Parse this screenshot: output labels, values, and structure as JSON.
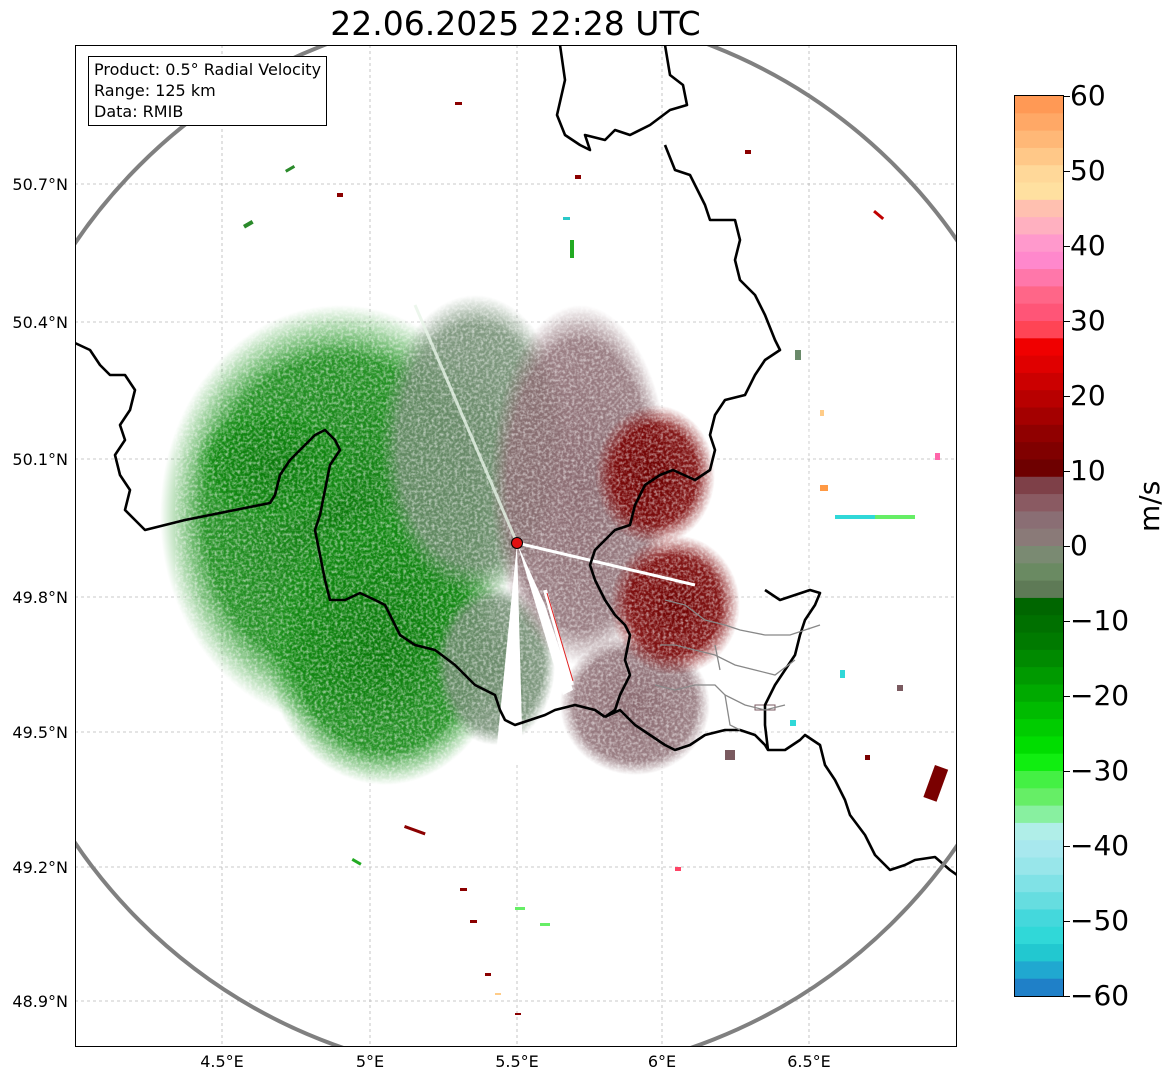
{
  "title": "22.06.2025 22:28 UTC",
  "info_box": {
    "product": "Product: 0.5° Radial Velocity",
    "range": "Range: 125 km",
    "data": "Data: RMIB"
  },
  "map": {
    "lat_labels": [
      "50.7°N",
      "50.4°N",
      "50.1°N",
      "49.8°N",
      "49.5°N",
      "49.2°N",
      "48.9°N"
    ],
    "lon_labels": [
      "4.5°E",
      "5°E",
      "5.5°E",
      "6°E",
      "6.5°E"
    ],
    "range_ring_color": "#808080",
    "border_color": "#000000",
    "radar_site_color": "#e01010"
  },
  "colorbar": {
    "unit": "m/s",
    "min": -60,
    "max": 60,
    "ticks": [
      "60",
      "50",
      "40",
      "30",
      "20",
      "10",
      "0",
      "−10",
      "−20",
      "−30",
      "−40",
      "−50",
      "−60"
    ]
  }
}
